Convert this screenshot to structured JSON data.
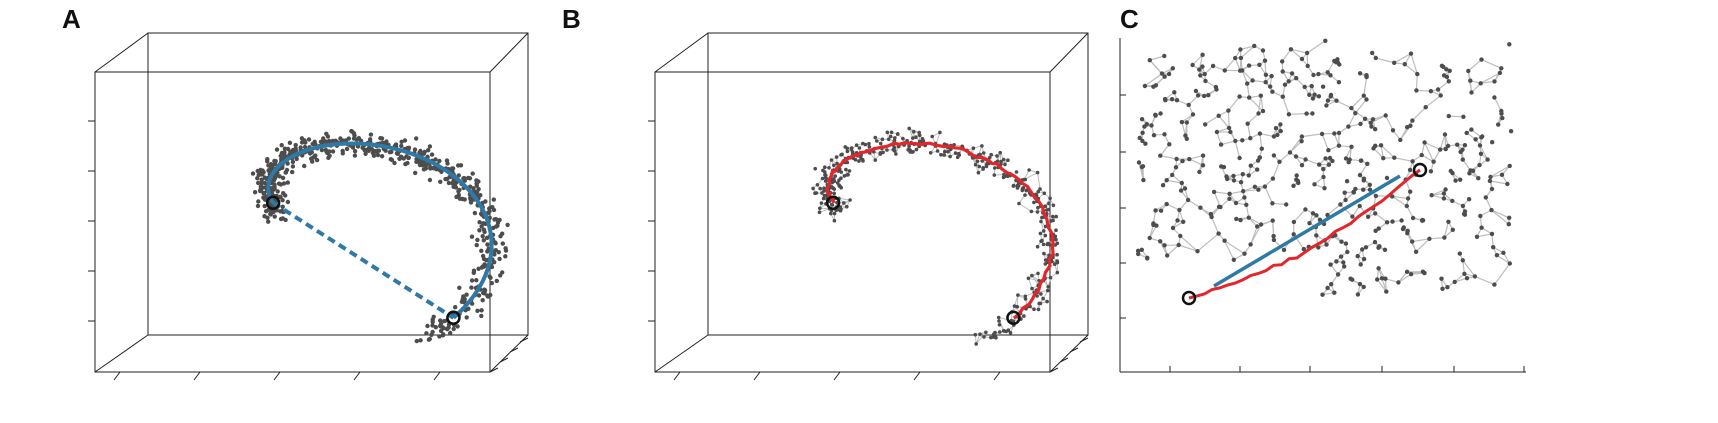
{
  "panels": [
    {
      "id": "A",
      "label": "A"
    },
    {
      "id": "B",
      "label": "B"
    },
    {
      "id": "C",
      "label": "C"
    }
  ],
  "colors": {
    "points": "#4d4d4d",
    "graph_edges": "#bdbdbd",
    "geodesic_path": "#e3262b",
    "euclidean_path": "#2f79a6",
    "endpoint_marker": "#111111",
    "axes": "#222222"
  },
  "legend": null
}
